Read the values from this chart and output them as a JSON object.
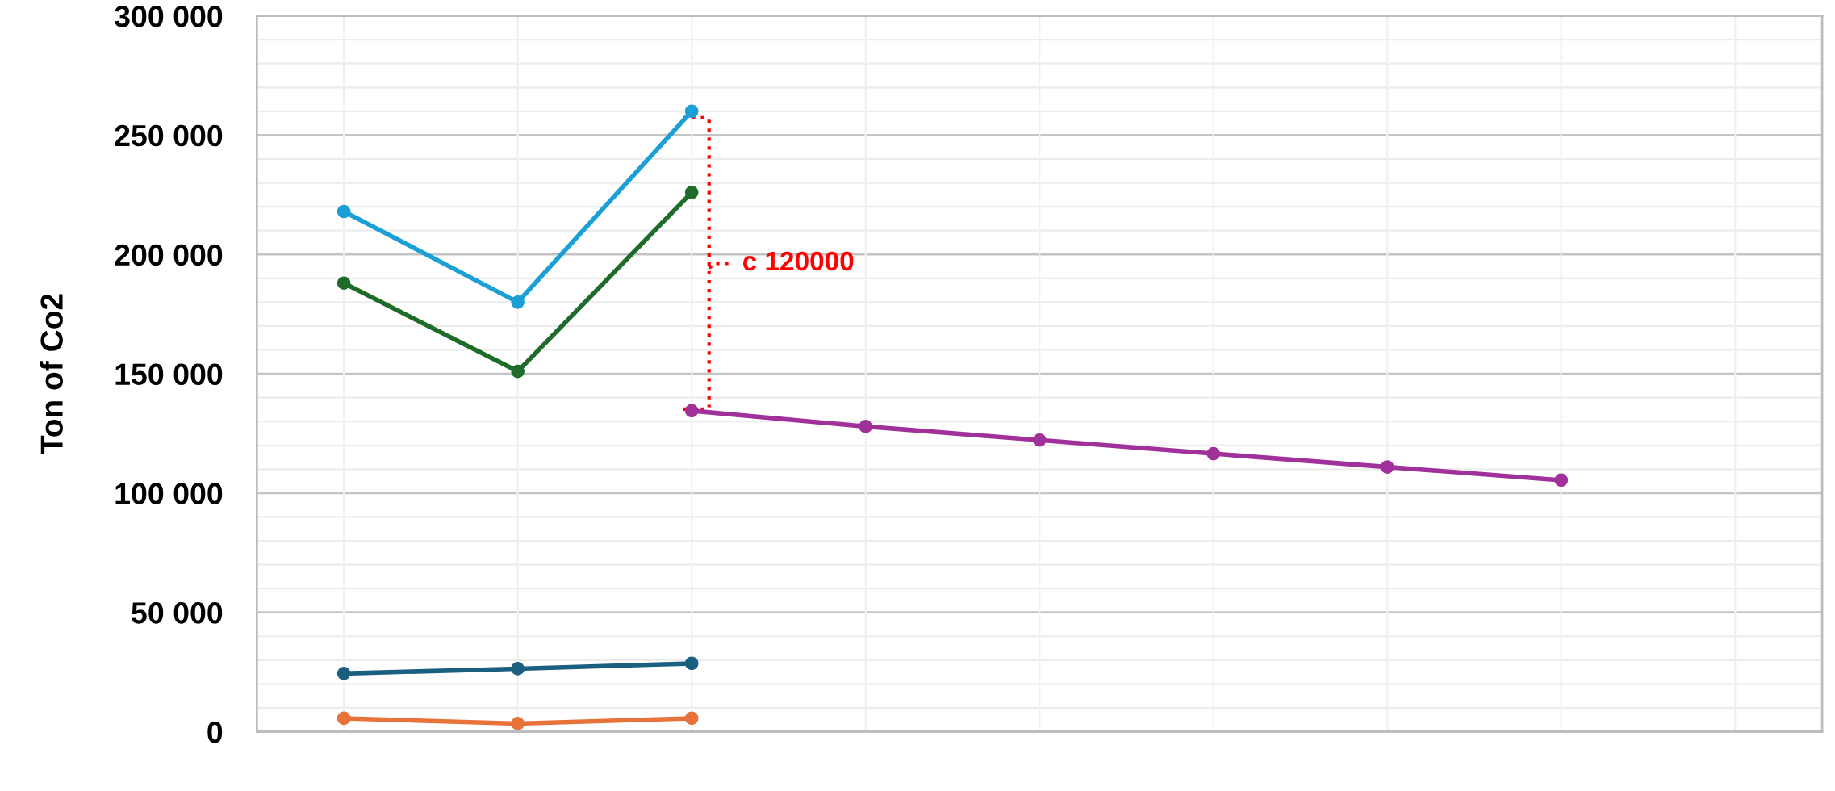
{
  "chart_data": {
    "type": "line",
    "ylabel": "Ton of Co2",
    "categories": [
      null,
      null,
      null,
      null,
      null,
      null,
      null,
      null,
      null
    ],
    "series": [
      {
        "color": "#1a9fd6",
        "values": [
          218000,
          180000,
          260000,
          null,
          null,
          null,
          null,
          null,
          null
        ]
      },
      {
        "color": "#1e6b2a",
        "values": [
          188000,
          151000,
          226000,
          null,
          null,
          null,
          null,
          null,
          null
        ]
      },
      {
        "color": "#1a5f80",
        "values": [
          24400,
          26400,
          28600,
          null,
          null,
          null,
          null,
          null,
          null
        ]
      },
      {
        "color": "#e8733a",
        "values": [
          5600,
          3400,
          5600,
          null,
          null,
          null,
          null,
          null,
          null
        ]
      },
      {
        "color": "#a0309a",
        "values": [
          null,
          null,
          134500,
          127900,
          122200,
          116500,
          110900,
          105400,
          null
        ]
      }
    ],
    "ylim": [
      0,
      300000
    ],
    "yticks": [
      {
        "value": 0,
        "label": "0"
      },
      {
        "value": 10000,
        "label": null
      },
      {
        "value": 20000,
        "label": null
      },
      {
        "value": 30000,
        "label": null
      },
      {
        "value": 40000,
        "label": null
      },
      {
        "value": 50000,
        "label": "50 000"
      },
      {
        "value": 60000,
        "label": null
      },
      {
        "value": 70000,
        "label": null
      },
      {
        "value": 80000,
        "label": null
      },
      {
        "value": 90000,
        "label": null
      },
      {
        "value": 100000,
        "label": "100 000"
      },
      {
        "value": 110000,
        "label": null
      },
      {
        "value": 120000,
        "label": null
      },
      {
        "value": 130000,
        "label": null
      },
      {
        "value": 140000,
        "label": null
      },
      {
        "value": 150000,
        "label": "150 000"
      },
      {
        "value": 160000,
        "label": null
      },
      {
        "value": 170000,
        "label": null
      },
      {
        "value": 180000,
        "label": null
      },
      {
        "value": 190000,
        "label": null
      },
      {
        "value": 200000,
        "label": "200 000"
      },
      {
        "value": 210000,
        "label": null
      },
      {
        "value": 220000,
        "label": null
      },
      {
        "value": 230000,
        "label": null
      },
      {
        "value": 240000,
        "label": null
      },
      {
        "value": 250000,
        "label": "250 000"
      },
      {
        "value": 260000,
        "label": null
      },
      {
        "value": 270000,
        "label": null
      },
      {
        "value": 280000,
        "label": null
      },
      {
        "value": 290000,
        "label": null
      },
      {
        "value": 300000,
        "label": "300 000"
      }
    ],
    "grid": true,
    "marker": "circle",
    "line_style": "solid",
    "annotations": [
      "c 120000"
    ]
  }
}
